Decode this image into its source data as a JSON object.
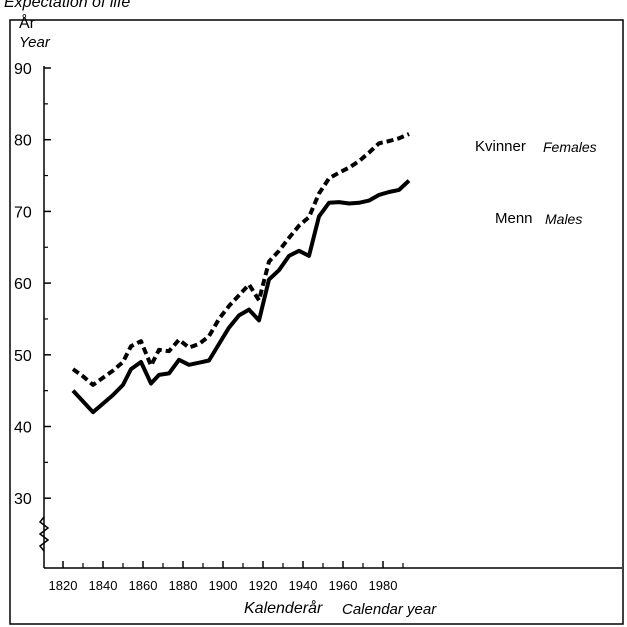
{
  "page": {
    "title": "Expectation of life"
  },
  "chart_data": {
    "type": "line",
    "title": "",
    "ylabel": "År",
    "ylabel_alt": "Year",
    "xlabel": "Kalenderår",
    "xlabel_alt": "Calendar year",
    "ylim": [
      25,
      90
    ],
    "xlim": [
      1815,
      1999
    ],
    "y_axis_break": true,
    "grid": false,
    "y_ticks": [
      30,
      40,
      50,
      60,
      70,
      80,
      90
    ],
    "x_ticks": [
      1820,
      1840,
      1860,
      1880,
      1900,
      1920,
      1940,
      1960,
      1980
    ],
    "series": [
      {
        "name": "Kvinner",
        "name_alt": "Females",
        "style": "dashed",
        "points": [
          [
            1825,
            48.0
          ],
          [
            1830,
            47.0
          ],
          [
            1835,
            45.8
          ],
          [
            1840,
            46.8
          ],
          [
            1845,
            47.8
          ],
          [
            1850,
            49.0
          ],
          [
            1854,
            51.2
          ],
          [
            1859,
            51.9
          ],
          [
            1864,
            48.5
          ],
          [
            1868,
            50.7
          ],
          [
            1873,
            50.5
          ],
          [
            1878,
            52.1
          ],
          [
            1883,
            51.0
          ],
          [
            1888,
            51.5
          ],
          [
            1893,
            52.6
          ],
          [
            1898,
            55.0
          ],
          [
            1903,
            56.8
          ],
          [
            1908,
            58.3
          ],
          [
            1913,
            59.8
          ],
          [
            1918,
            57.6
          ],
          [
            1923,
            63.0
          ],
          [
            1928,
            64.5
          ],
          [
            1933,
            66.3
          ],
          [
            1938,
            68.0
          ],
          [
            1943,
            69.2
          ],
          [
            1948,
            72.5
          ],
          [
            1953,
            74.6
          ],
          [
            1958,
            75.4
          ],
          [
            1963,
            76.1
          ],
          [
            1968,
            77.0
          ],
          [
            1973,
            78.2
          ],
          [
            1978,
            79.5
          ],
          [
            1983,
            79.8
          ],
          [
            1988,
            80.2
          ],
          [
            1993,
            80.8
          ]
        ]
      },
      {
        "name": "Menn",
        "name_alt": "Males",
        "style": "solid",
        "points": [
          [
            1825,
            45.0
          ],
          [
            1830,
            43.5
          ],
          [
            1835,
            42.0
          ],
          [
            1840,
            43.2
          ],
          [
            1845,
            44.4
          ],
          [
            1850,
            45.8
          ],
          [
            1854,
            48.0
          ],
          [
            1859,
            49.0
          ],
          [
            1864,
            46.0
          ],
          [
            1868,
            47.2
          ],
          [
            1873,
            47.4
          ],
          [
            1878,
            49.3
          ],
          [
            1883,
            48.6
          ],
          [
            1888,
            48.9
          ],
          [
            1893,
            49.2
          ],
          [
            1898,
            51.5
          ],
          [
            1903,
            53.8
          ],
          [
            1908,
            55.5
          ],
          [
            1913,
            56.3
          ],
          [
            1918,
            54.8
          ],
          [
            1923,
            60.5
          ],
          [
            1928,
            61.8
          ],
          [
            1933,
            63.8
          ],
          [
            1938,
            64.5
          ],
          [
            1943,
            63.8
          ],
          [
            1948,
            69.3
          ],
          [
            1953,
            71.2
          ],
          [
            1958,
            71.3
          ],
          [
            1963,
            71.1
          ],
          [
            1968,
            71.2
          ],
          [
            1973,
            71.5
          ],
          [
            1978,
            72.3
          ],
          [
            1983,
            72.7
          ],
          [
            1988,
            73.0
          ],
          [
            1993,
            74.3
          ]
        ]
      }
    ]
  }
}
